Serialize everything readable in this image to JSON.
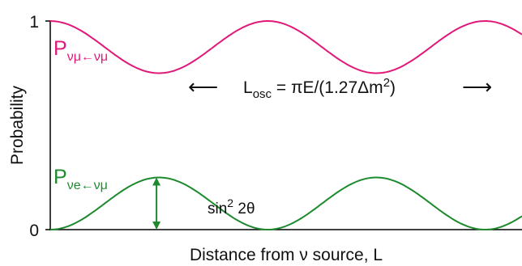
{
  "chart_data": {
    "type": "line",
    "xlabel": "Distance from ν source, L",
    "ylabel": "Probability",
    "ylim": [
      0,
      1
    ],
    "yticks": [
      {
        "value": 0,
        "label": "0"
      },
      {
        "value": 1,
        "label": "1"
      }
    ],
    "xlim": [
      0,
      1
    ],
    "grid": false,
    "series": [
      {
        "name_main": "P",
        "name_sub": "νμ←νμ",
        "color": "#e0187a",
        "amplitude": 0.25,
        "baseline": 1.0,
        "direction": -1,
        "x": [
          0,
          0.125,
          0.25,
          0.375,
          0.5,
          0.625,
          0.75,
          0.875,
          1.0
        ],
        "values": [
          1.0,
          0.875,
          0.75,
          0.875,
          1.0,
          0.875,
          0.75,
          0.875,
          1.0
        ]
      },
      {
        "name_main": "P",
        "name_sub": "νe←νμ",
        "color": "#1e8a2e",
        "amplitude": 0.25,
        "baseline": 0.0,
        "direction": 1,
        "x": [
          0,
          0.125,
          0.25,
          0.375,
          0.5,
          0.625,
          0.75,
          0.875,
          1.0
        ],
        "values": [
          0.0,
          0.125,
          0.25,
          0.125,
          0.0,
          0.125,
          0.25,
          0.125,
          0.0
        ]
      }
    ],
    "annotations": {
      "osc_left_arrow": "⟵",
      "osc_right_arrow": "⟶",
      "osc_main": "L",
      "osc_sub": "osc",
      "osc_rest_1": " = πE/(1.27Δm",
      "osc_sup": "2",
      "osc_rest_2": ")",
      "amp_main": "sin",
      "amp_sup": "2",
      "amp_rest": " 2θ",
      "amp_color": "#1e8a2e"
    }
  }
}
